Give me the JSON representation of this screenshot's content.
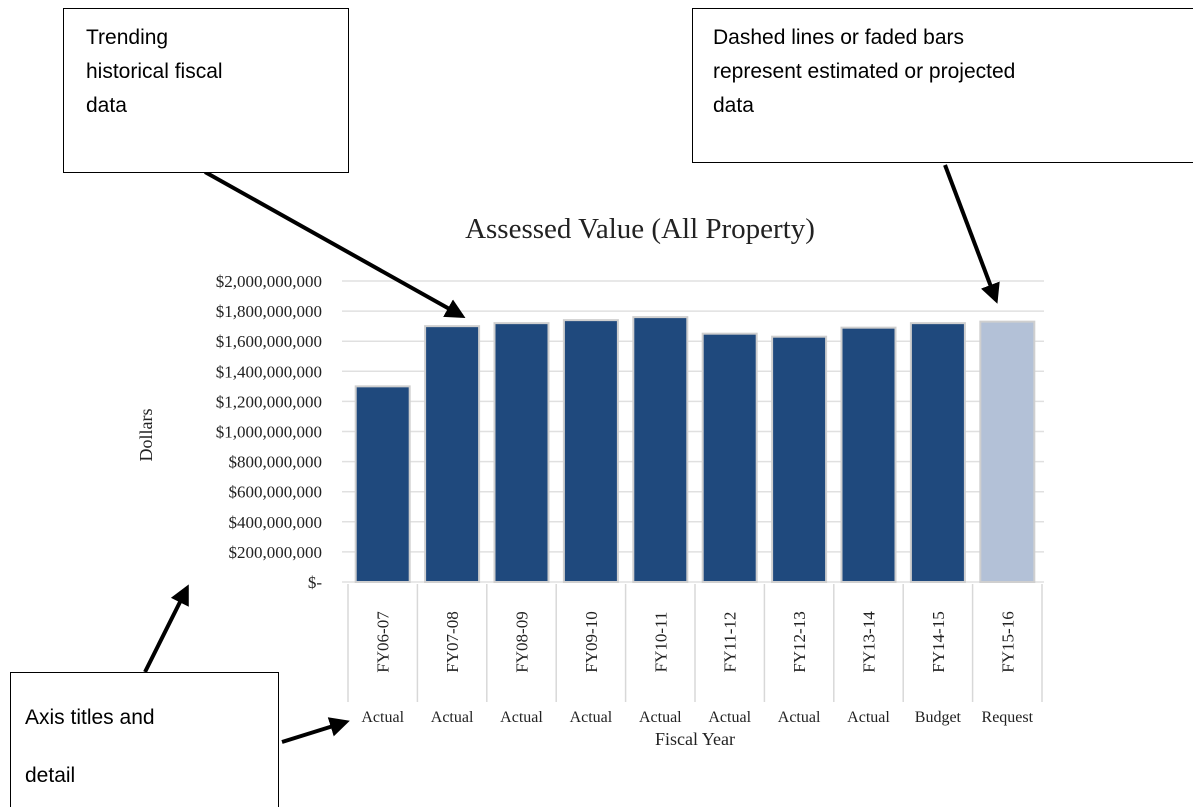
{
  "chart_data": {
    "type": "bar",
    "title": "Assessed Value (All Property)",
    "y_axis_label": "Dollars",
    "x_axis_label": "Fiscal Year",
    "categories": [
      "FY06-07",
      "FY07-08",
      "FY08-09",
      "FY09-10",
      "FY10-11",
      "FY11-12",
      "FY12-13",
      "FY13-14",
      "FY14-15",
      "FY15-16"
    ],
    "category_sublabels": [
      "Actual",
      "Actual",
      "Actual",
      "Actual",
      "Actual",
      "Actual",
      "Actual",
      "Actual",
      "Budget",
      "Request"
    ],
    "values": [
      1300000000,
      1700000000,
      1720000000,
      1740000000,
      1760000000,
      1650000000,
      1630000000,
      1690000000,
      1720000000,
      1730000000
    ],
    "colors": [
      "#1f497d",
      "#1f497d",
      "#1f497d",
      "#1f497d",
      "#1f497d",
      "#1f497d",
      "#1f497d",
      "#1f497d",
      "#1f497d",
      "#b3c1d7"
    ],
    "ylim": [
      0,
      2000000000
    ],
    "yticks": [
      {
        "value": 0,
        "label": "$-"
      },
      {
        "value": 200000000,
        "label": "$200,000,000"
      },
      {
        "value": 400000000,
        "label": "$400,000,000"
      },
      {
        "value": 600000000,
        "label": "$600,000,000"
      },
      {
        "value": 800000000,
        "label": "$800,000,000"
      },
      {
        "value": 1000000000,
        "label": "$1,000,000,000"
      },
      {
        "value": 1200000000,
        "label": "$1,200,000,000"
      },
      {
        "value": 1400000000,
        "label": "$1,400,000,000"
      },
      {
        "value": 1600000000,
        "label": "$1,600,000,000"
      },
      {
        "value": 1800000000,
        "label": "$1,800,000,000"
      },
      {
        "value": 2000000000,
        "label": "$2,000,000,000"
      }
    ],
    "grid": true,
    "annotations": [
      {
        "lines": [
          "Trending",
          "historical fiscal",
          "data"
        ]
      },
      {
        "lines": [
          "Dashed lines or faded bars",
          "represent estimated or projected",
          "data"
        ]
      },
      {
        "lines": [
          "Axis titles and",
          "detail"
        ]
      }
    ]
  }
}
